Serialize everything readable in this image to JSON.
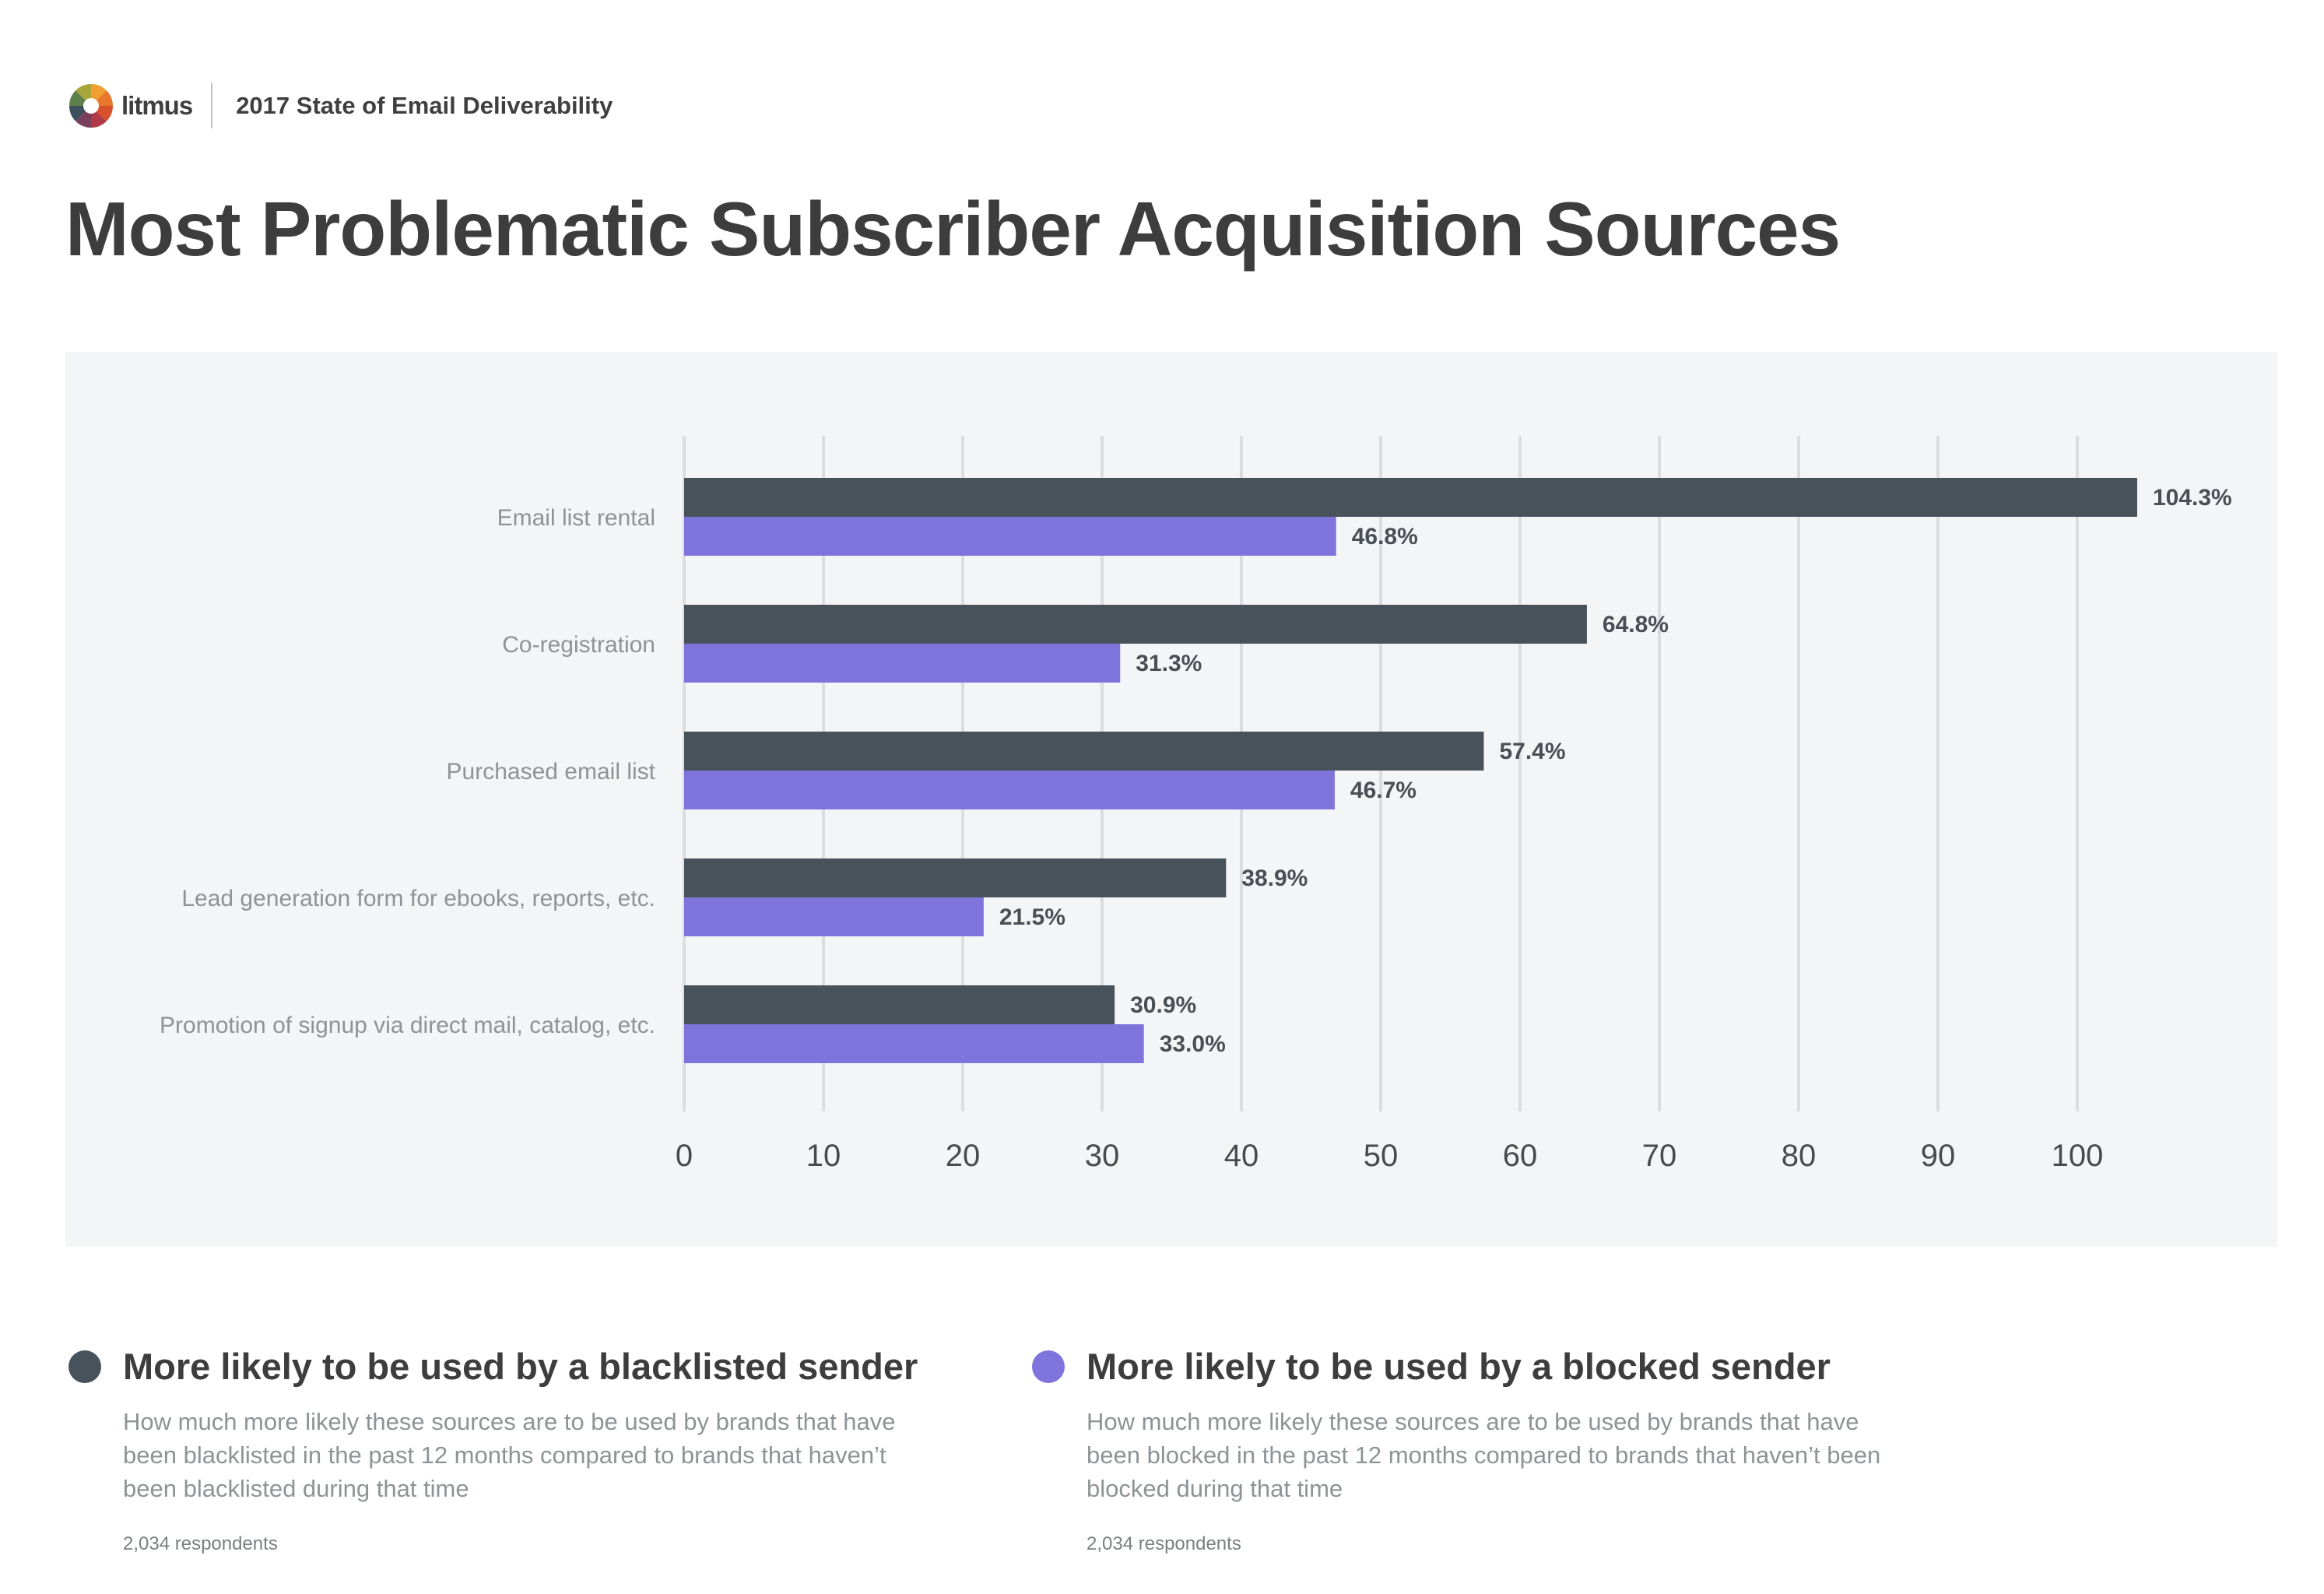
{
  "header": {
    "logo_text": "litmus",
    "report_name": "2017 State of Email Deliverability"
  },
  "title": "Most Problematic Subscriber Acquisition Sources",
  "colors": {
    "blacklisted": "#47525a",
    "blocked": "#7f74dc",
    "panel": "#f4f5f7",
    "grid": "#dcdde0"
  },
  "chart_data": {
    "type": "bar",
    "orientation": "horizontal",
    "categories": [
      "Email list rental",
      "Co-registration",
      "Purchased email list",
      "Lead generation form for ebooks, reports, etc.",
      "Promotion of signup via direct mail, catalog, etc."
    ],
    "series": [
      {
        "name": "More likely to be used by a blacklisted sender",
        "values": [
          104.3,
          64.8,
          57.4,
          38.9,
          30.9
        ],
        "labels": [
          "104.3%",
          "64.8%",
          "57.4%",
          "38.9%",
          "30.9%"
        ],
        "color": "#47525a"
      },
      {
        "name": "More likely to be used by a blocked sender",
        "values": [
          46.8,
          31.3,
          46.7,
          21.5,
          33.0
        ],
        "labels": [
          "46.8%",
          "31.3%",
          "46.7%",
          "21.5%",
          "33.0%"
        ],
        "color": "#7f74dc"
      }
    ],
    "xlim": [
      0,
      100
    ],
    "xticks": [
      0,
      10,
      20,
      30,
      40,
      50,
      60,
      70,
      80,
      90,
      100
    ],
    "grid": true,
    "legend_placement": "bottom"
  },
  "legend": [
    {
      "title": "More likely to be used by a blacklisted sender",
      "description": "How much more likely these sources are to be used by brands that have been blacklisted in the past 12 months compared to brands that haven’t been blacklisted during that time",
      "respondents": "2,034 respondents"
    },
    {
      "title": "More likely to be used by a blocked sender",
      "description": "How much more likely these sources are to be used by brands that have been blocked in the past 12 months compared to brands that haven’t been blocked during that time",
      "respondents": "2,034 respondents"
    }
  ]
}
